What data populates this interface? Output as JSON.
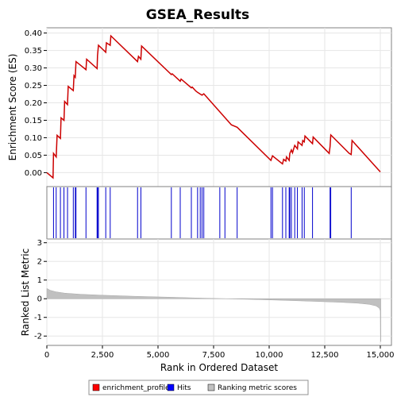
{
  "chart_data": {
    "type": "line",
    "title": "GSEA_Results",
    "xlabel": "Rank in Ordered Dataset",
    "xlim": [
      0,
      15500
    ],
    "x_ticks": [
      0,
      2500,
      5000,
      7500,
      10000,
      12500,
      15000
    ],
    "x_tick_labels": [
      "0",
      "2,500",
      "5,000",
      "7,500",
      "10,000",
      "12,500",
      "15,000"
    ],
    "enrichment": {
      "ylabel": "Enrichment Score (ES)",
      "ylim": [
        -0.04,
        0.415
      ],
      "y_ticks": [
        0.0,
        0.05,
        0.1,
        0.15,
        0.2,
        0.25,
        0.3,
        0.35,
        0.4
      ],
      "y_tick_labels": [
        "0.00",
        "0.05",
        "0.10",
        "0.15",
        "0.20",
        "0.25",
        "0.30",
        "0.35",
        "0.40"
      ],
      "color": "#cc0000",
      "points": [
        [
          0,
          0.0
        ],
        [
          280,
          -0.015
        ],
        [
          300,
          0.055
        ],
        [
          420,
          0.045
        ],
        [
          460,
          0.107
        ],
        [
          610,
          0.098
        ],
        [
          640,
          0.157
        ],
        [
          770,
          0.15
        ],
        [
          800,
          0.204
        ],
        [
          930,
          0.195
        ],
        [
          960,
          0.247
        ],
        [
          1190,
          0.235
        ],
        [
          1220,
          0.278
        ],
        [
          1280,
          0.273
        ],
        [
          1310,
          0.318
        ],
        [
          1760,
          0.295
        ],
        [
          1790,
          0.325
        ],
        [
          2260,
          0.298
        ],
        [
          2280,
          0.335
        ],
        [
          2320,
          0.365
        ],
        [
          2650,
          0.345
        ],
        [
          2680,
          0.372
        ],
        [
          2850,
          0.365
        ],
        [
          2880,
          0.392
        ],
        [
          4080,
          0.318
        ],
        [
          4120,
          0.333
        ],
        [
          4230,
          0.325
        ],
        [
          4260,
          0.363
        ],
        [
          5600,
          0.281
        ],
        [
          5640,
          0.283
        ],
        [
          6000,
          0.262
        ],
        [
          6040,
          0.268
        ],
        [
          6500,
          0.243
        ],
        [
          6540,
          0.245
        ],
        [
          6700,
          0.234
        ],
        [
          6780,
          0.23
        ],
        [
          6900,
          0.225
        ],
        [
          6980,
          0.222
        ],
        [
          7060,
          0.226
        ],
        [
          8300,
          0.137
        ],
        [
          8560,
          0.13
        ],
        [
          10080,
          0.035
        ],
        [
          10150,
          0.048
        ],
        [
          10600,
          0.025
        ],
        [
          10650,
          0.038
        ],
        [
          10750,
          0.033
        ],
        [
          10780,
          0.045
        ],
        [
          10900,
          0.035
        ],
        [
          10930,
          0.055
        ],
        [
          11000,
          0.065
        ],
        [
          11050,
          0.057
        ],
        [
          11150,
          0.078
        ],
        [
          11270,
          0.068
        ],
        [
          11300,
          0.088
        ],
        [
          11480,
          0.078
        ],
        [
          11510,
          0.092
        ],
        [
          11580,
          0.088
        ],
        [
          11610,
          0.105
        ],
        [
          11950,
          0.083
        ],
        [
          11980,
          0.102
        ],
        [
          12700,
          0.055
        ],
        [
          12740,
          0.075
        ],
        [
          12770,
          0.108
        ],
        [
          13600,
          0.055
        ],
        [
          13690,
          0.052
        ],
        [
          13730,
          0.092
        ],
        [
          15000,
          0.002
        ]
      ]
    },
    "hits": {
      "label": "Hits",
      "color": "#0000cc",
      "positions": [
        300,
        420,
        610,
        770,
        930,
        1190,
        1280,
        1310,
        1760,
        2260,
        2280,
        2320,
        2650,
        2850,
        4080,
        4230,
        5600,
        6000,
        6500,
        6780,
        6900,
        6980,
        7060,
        7780,
        8010,
        8560,
        10080,
        10150,
        10600,
        10750,
        10900,
        10930,
        11000,
        11150,
        11270,
        11480,
        11580,
        11950,
        12740,
        12770,
        13690
      ]
    },
    "metric": {
      "ylabel": "Ranked List Metric",
      "ylim": [
        -2.5,
        3.2
      ],
      "y_ticks": [
        -2,
        -1,
        0,
        1,
        2,
        3
      ],
      "y_tick_labels": [
        "-2",
        "-1",
        "0",
        "1",
        "2",
        "3"
      ],
      "fill": "#c0c0c0",
      "profile": [
        [
          0,
          0.55
        ],
        [
          150,
          0.45
        ],
        [
          400,
          0.37
        ],
        [
          800,
          0.3
        ],
        [
          1500,
          0.24
        ],
        [
          2500,
          0.19
        ],
        [
          4000,
          0.13
        ],
        [
          5500,
          0.08
        ],
        [
          7000,
          0.03
        ],
        [
          8000,
          0.0
        ],
        [
          9000,
          -0.03
        ],
        [
          10500,
          -0.08
        ],
        [
          12000,
          -0.14
        ],
        [
          13200,
          -0.19
        ],
        [
          14000,
          -0.24
        ],
        [
          14500,
          -0.3
        ],
        [
          14800,
          -0.38
        ],
        [
          14950,
          -0.5
        ],
        [
          15000,
          -0.65
        ],
        [
          15010,
          -2.3
        ],
        [
          15020,
          -2.3
        ]
      ]
    },
    "legend": {
      "placement": "bottom",
      "entries": [
        {
          "label": "enrichment_profile",
          "color": "#ff0000"
        },
        {
          "label": "Hits",
          "color": "#0000ff"
        },
        {
          "label": "Ranking metric scores",
          "color": "#c0c0c0"
        }
      ]
    }
  }
}
